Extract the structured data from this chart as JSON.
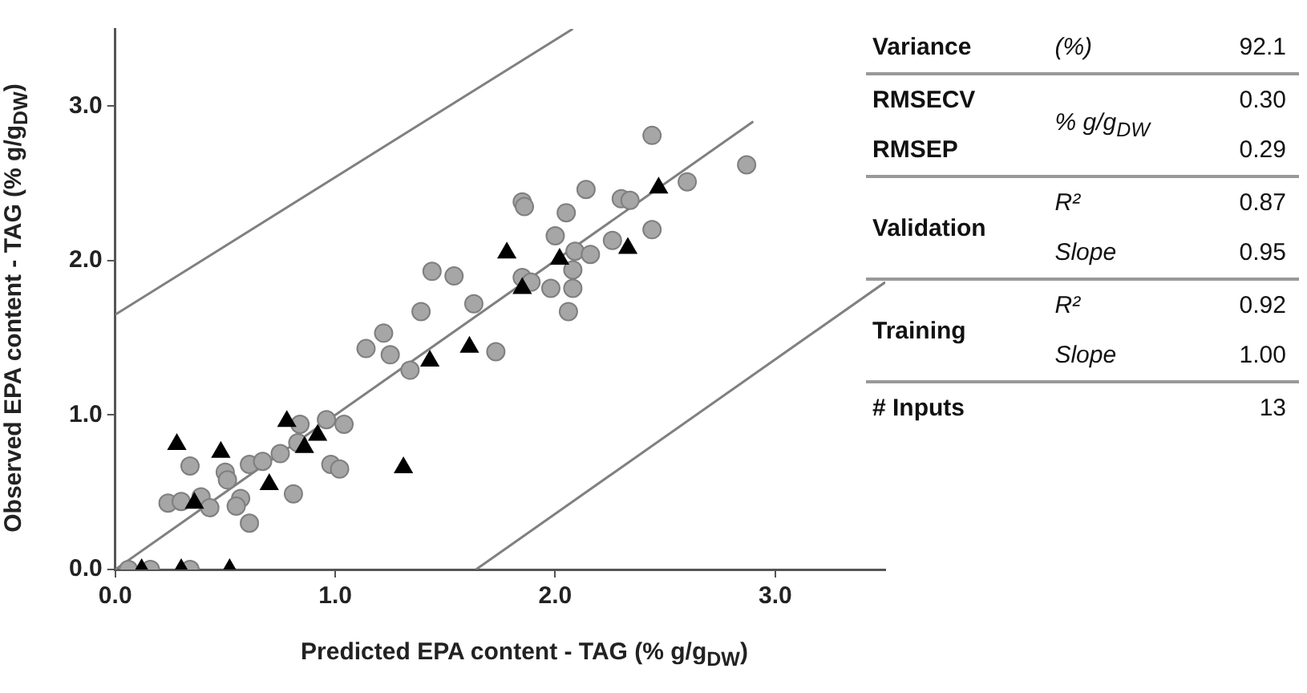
{
  "chart_data": {
    "type": "scatter",
    "xlabel": "Predicted EPA content - TAG (% g/g$_{DW}$)",
    "ylabel": "Observed EPA content - TAG (% g/g$_{DW}$)",
    "xlim": [
      0,
      3.5
    ],
    "ylim": [
      0,
      3.5
    ],
    "xticks": [
      {
        "value": 0,
        "label": "0.0"
      },
      {
        "value": 1,
        "label": "1.0"
      },
      {
        "value": 2,
        "label": "2.0"
      },
      {
        "value": 3,
        "label": "3.0"
      }
    ],
    "yticks": [
      {
        "value": 0,
        "label": "0.0"
      },
      {
        "value": 1,
        "label": "1.0"
      },
      {
        "value": 2,
        "label": "2.0"
      },
      {
        "value": 3,
        "label": "3.0"
      }
    ],
    "legend": false,
    "series": [
      {
        "marker": "circle",
        "color": "#a6a6a6",
        "x": [
          0.06,
          0.16,
          0.34,
          0.34,
          0.24,
          0.3,
          0.39,
          0.43,
          0.5,
          0.51,
          0.57,
          0.55,
          0.61,
          0.61,
          0.67,
          0.75,
          0.81,
          0.84,
          0.83,
          0.96,
          1.04,
          0.98,
          1.02,
          1.14,
          1.22,
          1.25,
          1.34,
          1.39,
          1.44,
          1.54,
          1.63,
          1.73,
          1.85,
          1.86,
          1.85,
          1.89,
          1.98,
          2.0,
          2.05,
          2.08,
          2.08,
          2.06,
          2.09,
          2.16,
          2.14,
          2.44,
          2.87,
          2.3,
          2.34,
          2.6,
          2.44,
          2.26
        ],
        "values": [
          0,
          0,
          0,
          0.67,
          0.43,
          0.44,
          0.47,
          0.4,
          0.63,
          0.58,
          0.46,
          0.41,
          0.3,
          0.68,
          0.7,
          0.75,
          0.49,
          0.94,
          0.82,
          0.97,
          0.94,
          0.68,
          0.65,
          1.43,
          1.53,
          1.39,
          1.29,
          1.67,
          1.93,
          1.9,
          1.72,
          1.41,
          2.38,
          2.35,
          1.89,
          1.86,
          1.82,
          2.16,
          2.31,
          1.94,
          1.82,
          1.67,
          2.06,
          2.04,
          2.46,
          2.81,
          2.62,
          2.4,
          2.39,
          2.51,
          2.2,
          2.13
        ]
      },
      {
        "marker": "triangle",
        "color": "#000000",
        "x": [
          0.12,
          0.3,
          0.52,
          0.28,
          0.48,
          0.78,
          0.92,
          0.86,
          0.7,
          0.36,
          1.31,
          1.43,
          1.61,
          1.78,
          1.85,
          2.02,
          2.47,
          2.33
        ],
        "values": [
          0,
          0,
          0,
          0.81,
          0.76,
          0.96,
          0.87,
          0.79,
          0.55,
          0.43,
          0.66,
          1.35,
          1.44,
          2.05,
          1.82,
          2.01,
          2.47,
          2.08
        ]
      },
      {
        "type": "line",
        "marker": "none",
        "line_style": "solid",
        "color": "#808080",
        "x": [
          0,
          2.9
        ],
        "values": [
          0,
          2.9
        ]
      },
      {
        "type": "line",
        "marker": "none",
        "line_style": "solid",
        "color": "#808080",
        "x": [
          0,
          2.08
        ],
        "values": [
          1.65,
          3.5
        ]
      },
      {
        "type": "line",
        "marker": "none",
        "line_style": "solid",
        "color": "#808080",
        "x": [
          1.64,
          3.5
        ],
        "values": [
          0,
          1.86
        ]
      }
    ],
    "annotations": [
      "Variance",
      "(%)",
      "92.1",
      "RMSECV",
      "% g/g$_{DW}$",
      "0.30",
      "RMSEP",
      "0.29",
      "Validation",
      "R²",
      "0.87",
      "Slope",
      "0.95",
      "Training",
      "R²",
      "0.92",
      "Slope",
      "1.00",
      "# Inputs",
      "13"
    ]
  }
}
